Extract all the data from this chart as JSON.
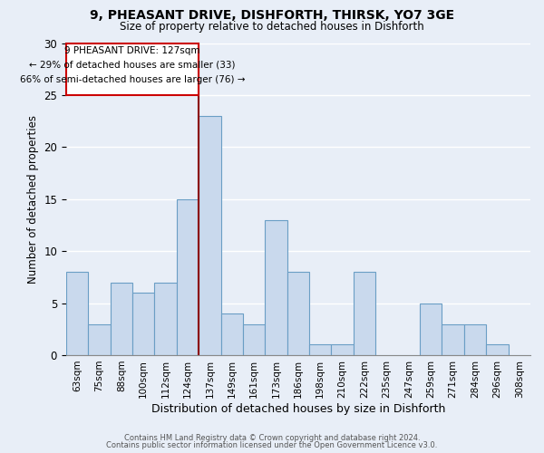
{
  "title_line1": "9, PHEASANT DRIVE, DISHFORTH, THIRSK, YO7 3GE",
  "title_line2": "Size of property relative to detached houses in Dishforth",
  "xlabel": "Distribution of detached houses by size in Dishforth",
  "ylabel": "Number of detached properties",
  "categories": [
    "63sqm",
    "75sqm",
    "88sqm",
    "100sqm",
    "112sqm",
    "124sqm",
    "137sqm",
    "149sqm",
    "161sqm",
    "173sqm",
    "186sqm",
    "198sqm",
    "210sqm",
    "222sqm",
    "235sqm",
    "247sqm",
    "259sqm",
    "271sqm",
    "284sqm",
    "296sqm",
    "308sqm"
  ],
  "values": [
    8,
    3,
    7,
    6,
    7,
    15,
    23,
    4,
    3,
    13,
    8,
    1,
    1,
    8,
    0,
    0,
    5,
    3,
    3,
    1,
    0
  ],
  "bar_color": "#c9d9ed",
  "bar_edge_color": "#6a9ec5",
  "vline_x": 5.5,
  "annotation_line1": "9 PHEASANT DRIVE: 127sqm",
  "annotation_line2": "← 29% of detached houses are smaller (33)",
  "annotation_line3": "66% of semi-detached houses are larger (76) →",
  "vline_color": "#8b0000",
  "ylim": [
    0,
    30
  ],
  "yticks": [
    0,
    5,
    10,
    15,
    20,
    25,
    30
  ],
  "footer_line1": "Contains HM Land Registry data © Crown copyright and database right 2024.",
  "footer_line2": "Contains public sector information licensed under the Open Government Licence v3.0.",
  "background_color": "#e8eef7",
  "annotation_box_color": "#ffffff",
  "annotation_box_edge": "#cc0000"
}
